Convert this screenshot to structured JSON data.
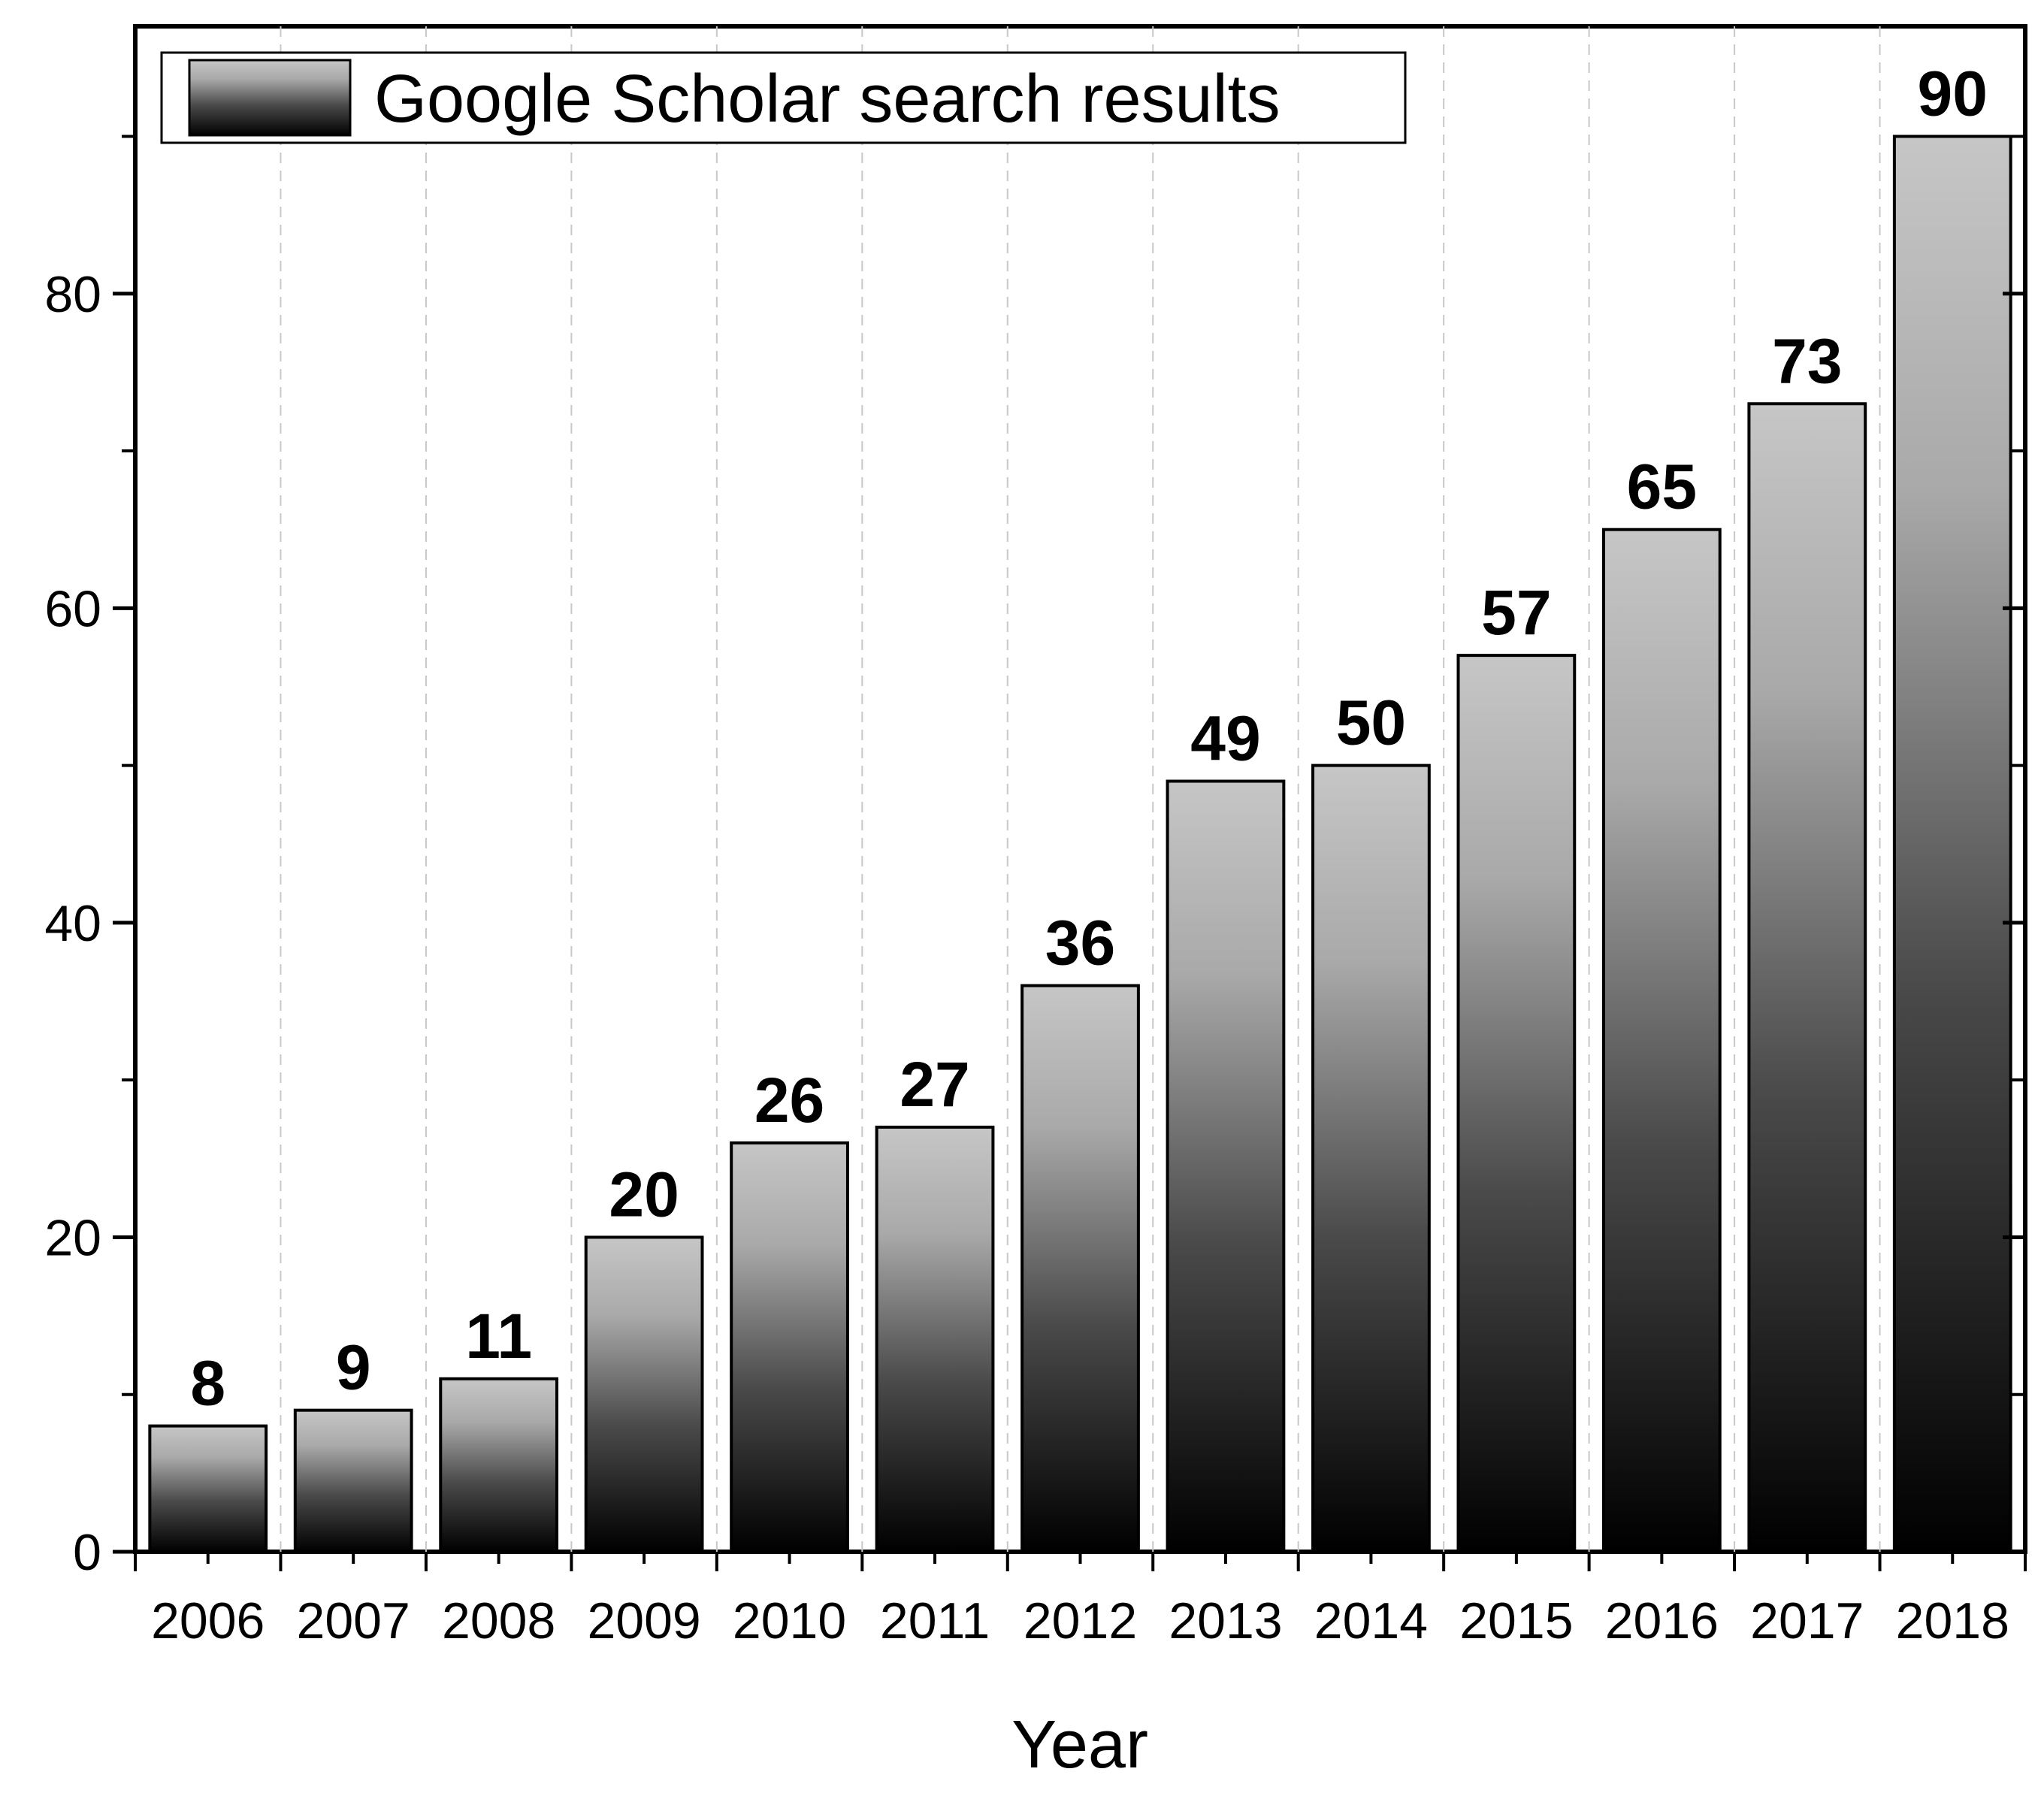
{
  "chart_data": {
    "type": "bar",
    "categories": [
      "2006",
      "2007",
      "2008",
      "2009",
      "2010",
      "2011",
      "2012",
      "2013",
      "2014",
      "2015",
      "2016",
      "2017",
      "2018"
    ],
    "series": [
      {
        "name": "Google Scholar search results",
        "values": [
          8,
          9,
          11,
          20,
          26,
          27,
          36,
          49,
          50,
          57,
          65,
          73,
          90
        ]
      }
    ],
    "data_labels": [
      "8",
      "9",
      "11",
      "20",
      "26",
      "27",
      "36",
      "49",
      "50",
      "57",
      "65",
      "73",
      "90"
    ],
    "xlabel": "Year",
    "ylabel": "",
    "ylim": [
      0,
      97
    ],
    "yticks": [
      "0",
      "20",
      "40",
      "60",
      "80"
    ],
    "ytick_values": [
      0,
      20,
      40,
      60,
      80
    ],
    "grid": "vertical dashed",
    "legend": "top-left"
  }
}
